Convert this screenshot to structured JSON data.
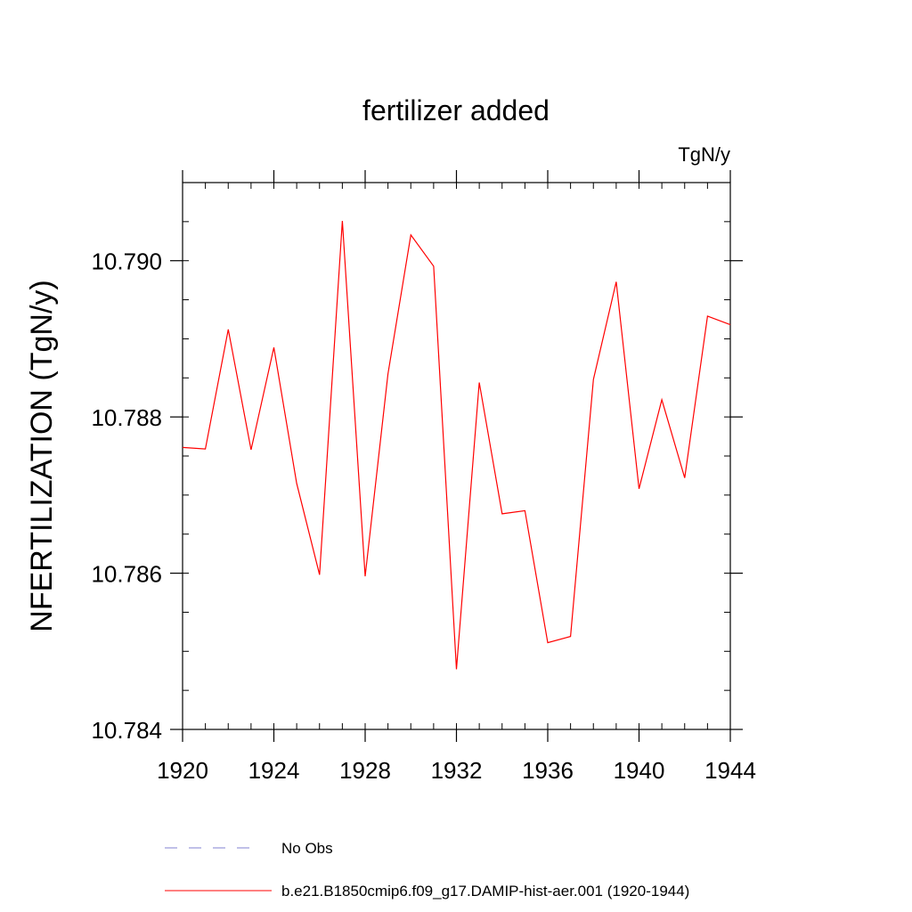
{
  "chart_data": {
    "type": "line",
    "title": "fertilizer added",
    "units_label": "TgN/y",
    "ylabel": "NFERTILIZATION  (TgN/y)",
    "xlabel": "",
    "xlim": [
      1920,
      1944
    ],
    "ylim": [
      10.784,
      10.791
    ],
    "x_ticks": [
      1920,
      1924,
      1928,
      1932,
      1936,
      1940,
      1944
    ],
    "x_tick_labels": [
      "1920",
      "1924",
      "1928",
      "1932",
      "1936",
      "1940",
      "1944"
    ],
    "y_ticks": [
      10.784,
      10.786,
      10.788,
      10.79
    ],
    "y_tick_labels": [
      "10.784",
      "10.786",
      "10.788",
      "10.790"
    ],
    "y_minor_step": 0.0005,
    "x_minor_step": 1,
    "grid": false,
    "legend_position": "bottom",
    "series": [
      {
        "name": "b.e21.B1850cmip6.f09_g17.DAMIP-hist-aer.001 (1920-1944)",
        "color": "#ff0000",
        "style": "solid",
        "x": [
          1920,
          1921,
          1922,
          1923,
          1924,
          1925,
          1926,
          1927,
          1928,
          1929,
          1930,
          1931,
          1932,
          1933,
          1934,
          1935,
          1936,
          1937,
          1938,
          1939,
          1940,
          1941,
          1942,
          1943,
          1944
        ],
        "values": [
          10.78761,
          10.78759,
          10.78912,
          10.78758,
          10.78889,
          10.78715,
          10.78598,
          10.79051,
          10.78596,
          10.78855,
          10.79033,
          10.78993,
          10.78477,
          10.78844,
          10.78676,
          10.7868,
          10.78511,
          10.78519,
          10.78848,
          10.78973,
          10.78708,
          10.78822,
          10.78722,
          10.78929,
          10.78918
        ]
      }
    ],
    "legend": [
      {
        "label": "No Obs",
        "color": "#8080d0",
        "style": "dashed"
      },
      {
        "label": "b.e21.B1850cmip6.f09_g17.DAMIP-hist-aer.001 (1920-1944)",
        "color": "#ff0000",
        "style": "solid"
      }
    ]
  }
}
